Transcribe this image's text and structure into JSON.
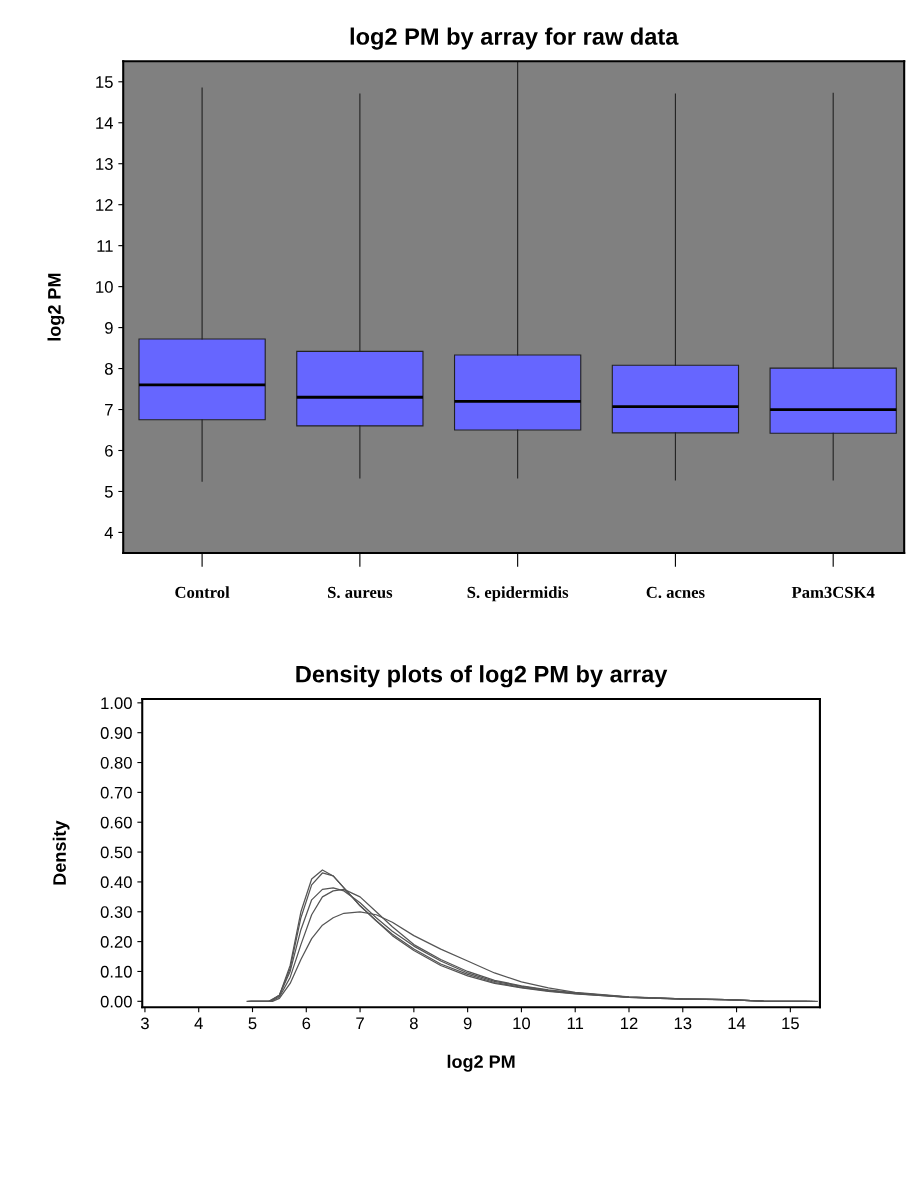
{
  "chart_data": [
    {
      "type": "box",
      "title": "log2 PM by array for raw data",
      "ylabel": "log2 PM",
      "categories": [
        "Control",
        "S. aureus",
        "S. epidermidis",
        "C. acnes",
        "Pam3CSK4"
      ],
      "series": [
        {
          "color": "#6666ff",
          "boxes": [
            {
              "low": 5.25,
              "q1": 6.75,
              "median": 7.6,
              "q3": 8.72,
              "high": 14.85
            },
            {
              "low": 5.33,
              "q1": 6.6,
              "median": 7.3,
              "q3": 8.42,
              "high": 14.7
            },
            {
              "low": 5.33,
              "q1": 6.5,
              "median": 7.2,
              "q3": 8.33,
              "high": 15.5
            },
            {
              "low": 5.28,
              "q1": 6.43,
              "median": 7.07,
              "q3": 8.08,
              "high": 14.7
            },
            {
              "low": 5.28,
              "q1": 6.42,
              "median": 7.0,
              "q3": 8.01,
              "high": 14.72
            }
          ]
        }
      ],
      "ylim": [
        3.5,
        15.5
      ],
      "yticks": [
        4,
        5,
        6,
        7,
        8,
        9,
        10,
        11,
        12,
        13,
        14,
        15
      ],
      "grid": false,
      "legend": false
    },
    {
      "type": "line",
      "title": "Density plots of log2 PM by array",
      "xlabel": "log2 PM",
      "ylabel": "Density",
      "series": [
        {
          "color": "#555555",
          "x": [
            4.9,
            5.3,
            5.5,
            5.7,
            5.9,
            6.1,
            6.3,
            6.5,
            6.7,
            7.0,
            7.3,
            7.6,
            8,
            8.5,
            9,
            9.5,
            10,
            10.5,
            11,
            12,
            13,
            13.8,
            14.5,
            15.5
          ],
          "values": [
            0,
            0,
            0.02,
            0.12,
            0.3,
            0.41,
            0.44,
            0.42,
            0.38,
            0.32,
            0.27,
            0.22,
            0.17,
            0.12,
            0.085,
            0.06,
            0.045,
            0.033,
            0.025,
            0.013,
            0.007,
            0.006,
            0.001,
            0
          ]
        },
        {
          "color": "#555555",
          "x": [
            4.92,
            5.32,
            5.5,
            5.7,
            5.9,
            6.1,
            6.3,
            6.5,
            6.7,
            7.0,
            7.3,
            7.6,
            8,
            8.5,
            9,
            9.5,
            10,
            10.5,
            11,
            12,
            13,
            13.8,
            14.5,
            15.45
          ],
          "values": [
            0,
            0,
            0.02,
            0.11,
            0.28,
            0.39,
            0.43,
            0.42,
            0.38,
            0.32,
            0.27,
            0.225,
            0.175,
            0.125,
            0.09,
            0.063,
            0.047,
            0.035,
            0.026,
            0.013,
            0.007,
            0.006,
            0.001,
            0
          ]
        },
        {
          "color": "#555555",
          "x": [
            4.94,
            5.34,
            5.5,
            5.7,
            5.9,
            6.1,
            6.3,
            6.5,
            6.7,
            7.0,
            7.3,
            7.6,
            8,
            8.5,
            9,
            9.5,
            10,
            10.5,
            11,
            12,
            13,
            13.8,
            14.5,
            15.4
          ],
          "values": [
            0,
            0,
            0.02,
            0.1,
            0.24,
            0.34,
            0.375,
            0.38,
            0.37,
            0.33,
            0.28,
            0.235,
            0.185,
            0.135,
            0.095,
            0.067,
            0.05,
            0.037,
            0.027,
            0.014,
            0.008,
            0.006,
            0.001,
            0
          ]
        },
        {
          "color": "#555555",
          "x": [
            4.96,
            5.36,
            5.5,
            5.7,
            5.9,
            6.1,
            6.3,
            6.5,
            6.7,
            7.0,
            7.3,
            7.6,
            8,
            8.5,
            9,
            9.5,
            10,
            10.5,
            11,
            12,
            13,
            13.8,
            14.5,
            15.35
          ],
          "values": [
            0,
            0,
            0.015,
            0.08,
            0.19,
            0.29,
            0.35,
            0.37,
            0.375,
            0.35,
            0.3,
            0.25,
            0.19,
            0.14,
            0.1,
            0.07,
            0.052,
            0.038,
            0.028,
            0.014,
            0.008,
            0.006,
            0.001,
            0
          ]
        },
        {
          "color": "#555555",
          "x": [
            4.98,
            5.38,
            5.5,
            5.7,
            5.9,
            6.1,
            6.3,
            6.5,
            6.7,
            7.0,
            7.3,
            7.6,
            8,
            8.5,
            9,
            9.5,
            10,
            10.5,
            11,
            12,
            13,
            13.8,
            14.5,
            15.3
          ],
          "values": [
            0,
            0,
            0.01,
            0.06,
            0.14,
            0.21,
            0.255,
            0.28,
            0.295,
            0.3,
            0.29,
            0.265,
            0.22,
            0.175,
            0.135,
            0.095,
            0.065,
            0.045,
            0.03,
            0.015,
            0.008,
            0.006,
            0.001,
            0
          ]
        }
      ],
      "xlim": [
        2.95,
        15.55
      ],
      "xticks": [
        3,
        4,
        5,
        6,
        7,
        8,
        9,
        10,
        11,
        12,
        13,
        14,
        15
      ],
      "ylim": [
        -0.02,
        1.013
      ],
      "yticks": [
        {
          "value": 0,
          "label": "0.00"
        },
        {
          "value": 0.1,
          "label": "0.10"
        },
        {
          "value": 0.2,
          "label": "0.20"
        },
        {
          "value": 0.3,
          "label": "0.30"
        },
        {
          "value": 0.4,
          "label": "0.40"
        },
        {
          "value": 0.5,
          "label": "0.50"
        },
        {
          "value": 0.6,
          "label": "0.60"
        },
        {
          "value": 0.7,
          "label": "0.70"
        },
        {
          "value": 0.8,
          "label": "0.80"
        },
        {
          "value": 0.9,
          "label": "0.90"
        },
        {
          "value": 1,
          "label": "1.00"
        }
      ],
      "grid": false,
      "legend": false
    }
  ]
}
